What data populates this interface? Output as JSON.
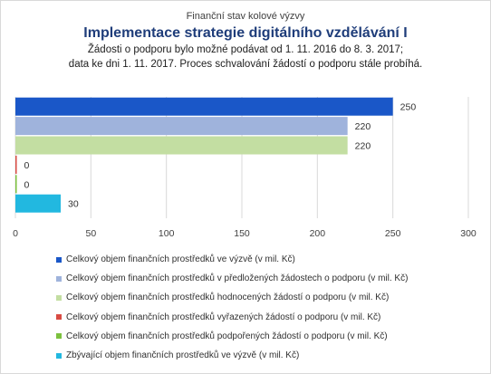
{
  "chart_data": {
    "type": "bar",
    "orientation": "horizontal",
    "supertitle": "Finanční stav kolové výzvy",
    "title": "Implementace strategie digitálního vzdělávání I",
    "subtitle_line1": "Žádosti o podporu bylo možné  podávat od 1. 11. 2016 do 8. 3. 2017;",
    "subtitle_line2": "data ke dni 1. 11. 2017. Proces schvalování žádostí o podporu stále probíhá.",
    "xlim": [
      0,
      300
    ],
    "xticks": [
      "0",
      "50",
      "100",
      "150",
      "200",
      "250",
      "300"
    ],
    "grid": true,
    "legend_position": "bottom",
    "series": [
      {
        "name": "Celkový objem finančních prostředků ve výzvě (v mil. Kč)",
        "value": 250,
        "label": "250",
        "color": "#1a57c8"
      },
      {
        "name": "Celkový objem finančních prostředků v předložených žádostech o podporu (v mil. Kč)",
        "value": 220,
        "label": "220",
        "color": "#9fb3dc"
      },
      {
        "name": "Celkový objem finančních prostředků hodnocených žádostí o podporu (v mil. Kč)",
        "value": 220,
        "label": "220",
        "color": "#c3dea2"
      },
      {
        "name": "Celkový objem finančních prostředků vyřazených žádostí o podporu (v mil. Kč)",
        "value": 0,
        "label": "0",
        "color": "#d94b43"
      },
      {
        "name": "Celkový objem finančních prostředků podpořených žádostí o podporu (v mil. Kč)",
        "value": 0,
        "label": "0",
        "color": "#7cc13e"
      },
      {
        "name": "Zbývající objem finančních prostředků ve výzvě (v mil. Kč)",
        "value": 30,
        "label": "30",
        "color": "#22b8e0"
      }
    ]
  }
}
